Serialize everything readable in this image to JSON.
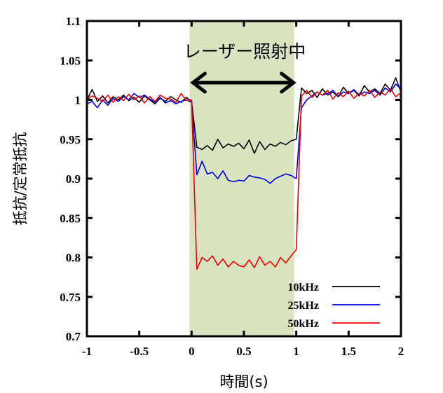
{
  "chart_data": {
    "type": "line",
    "xlabel": "時間(s)",
    "ylabel": "抵抗/定常抵抗",
    "xlim": [
      -1,
      2
    ],
    "ylim": [
      0.7,
      1.1
    ],
    "xticks": [
      "-1",
      "-0.5",
      "0",
      "0.5",
      "1",
      "1.5",
      "2"
    ],
    "yticks": [
      "0.7",
      "0.75",
      "0.8",
      "0.85",
      "0.9",
      "0.95",
      "1",
      "1.05",
      "1.1"
    ],
    "grid": false,
    "legend_position": "bottom-right",
    "shaded_region": {
      "x": [
        -0.02,
        0.98
      ],
      "color": "#d8e3c0",
      "label": "レーザー照射中"
    },
    "x_start": -1,
    "x_step": 0.05,
    "series": [
      {
        "name": "10kHz",
        "color": "#000000",
        "values": [
          1.0,
          1.013,
          0.998,
          1.005,
          0.996,
          1.004,
          1.0,
          1.006,
          0.999,
          1.003,
          0.997,
          1.005,
          1.0,
          0.995,
          1.002,
          0.998,
          1.004,
          1.0,
          0.997,
          1.003,
          0.998,
          0.94,
          0.937,
          0.942,
          0.936,
          0.95,
          0.939,
          0.944,
          0.941,
          0.945,
          0.938,
          0.949,
          0.932,
          0.947,
          0.937,
          0.944,
          0.941,
          0.946,
          0.943,
          0.948,
          0.95,
          1.015,
          1.008,
          1.012,
          1.003,
          1.014,
          1.006,
          1.01,
          1.004,
          1.016,
          1.008,
          1.012,
          1.005,
          1.018,
          1.01,
          1.014,
          1.008,
          1.02,
          1.012,
          1.028,
          1.01
        ]
      },
      {
        "name": "25kHz",
        "color": "#0000dd",
        "values": [
          0.995,
          0.998,
          0.99,
          1.0,
          0.993,
          1.002,
          0.998,
          1.004,
          1.0,
          1.008,
          1.003,
          1.006,
          1.001,
          0.997,
          1.003,
          0.996,
          0.999,
          0.995,
          0.998,
          1.0,
          0.997,
          0.905,
          0.922,
          0.906,
          0.908,
          0.9,
          0.91,
          0.898,
          0.896,
          0.898,
          0.897,
          0.904,
          0.902,
          0.901,
          0.899,
          0.894,
          0.9,
          0.903,
          0.906,
          0.904,
          0.9,
          0.99,
          1.0,
          1.005,
          1.01,
          1.006,
          1.008,
          1.012,
          1.004,
          1.01,
          1.008,
          1.013,
          1.006,
          1.01,
          1.008,
          1.012,
          1.006,
          1.015,
          1.01,
          1.02,
          1.014
        ]
      },
      {
        "name": "50kHz",
        "color": "#ee0000",
        "values": [
          1.0,
          1.005,
          1.002,
          0.998,
          1.006,
          0.997,
          1.004,
          0.999,
          1.007,
          1.0,
          1.005,
          0.996,
          1.004,
          0.998,
          1.006,
          1.002,
          1.001,
          0.997,
          1.008,
          0.999,
          1.0,
          0.785,
          0.8,
          0.795,
          0.802,
          0.79,
          0.798,
          0.788,
          0.795,
          0.79,
          0.788,
          0.797,
          0.787,
          0.801,
          0.79,
          0.795,
          0.788,
          0.8,
          0.793,
          0.802,
          0.81,
          1.005,
          1.012,
          1.003,
          1.01,
          1.006,
          1.012,
          1.001,
          1.009,
          1.004,
          1.011,
          1.002,
          1.008,
          1.005,
          1.012,
          1.003,
          1.01,
          1.006,
          1.014,
          1.004,
          1.009
        ]
      }
    ]
  }
}
